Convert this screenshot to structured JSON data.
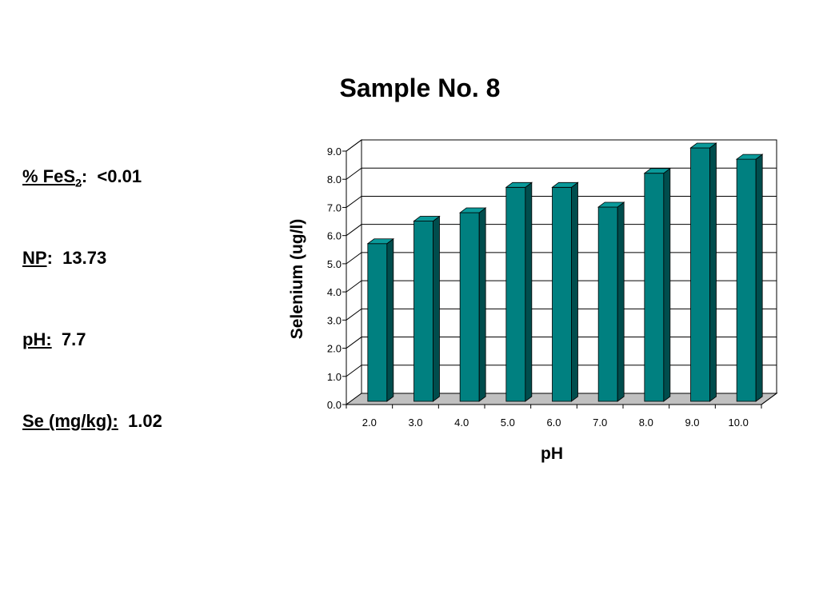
{
  "slide": {
    "title": "Sample No. 8"
  },
  "properties": [
    {
      "label": "% FeS",
      "subscript": "2",
      "suffix": ":",
      "value": "<0.01"
    },
    {
      "label": "NP",
      "subscript": "",
      "suffix": ":",
      "value": "13.73"
    },
    {
      "label": "pH:",
      "subscript": "",
      "suffix": "",
      "value": "7.7"
    },
    {
      "label": "Se (mg/kg):",
      "subscript": "",
      "suffix": "",
      "value": "1.02"
    }
  ],
  "chart_data": {
    "type": "bar",
    "title": "",
    "xlabel": "pH",
    "ylabel": "Selenium (ug/l)",
    "categories": [
      "2.0",
      "3.0",
      "4.0",
      "5.0",
      "6.0",
      "7.0",
      "8.0",
      "9.0",
      "10.0"
    ],
    "values": [
      5.6,
      6.4,
      6.7,
      7.6,
      7.6,
      6.9,
      8.1,
      9.0,
      8.6
    ],
    "ylim": [
      0,
      9
    ],
    "yticks": [
      "0.0",
      "1.0",
      "2.0",
      "3.0",
      "4.0",
      "5.0",
      "6.0",
      "7.0",
      "8.0",
      "9.0"
    ],
    "grid": true,
    "three_d": true,
    "legend": "none",
    "colors": {
      "bar_front": "#008080",
      "bar_side": "#004d4d",
      "bar_top": "#0a9a9a",
      "floor": "#c0c0c0"
    }
  }
}
